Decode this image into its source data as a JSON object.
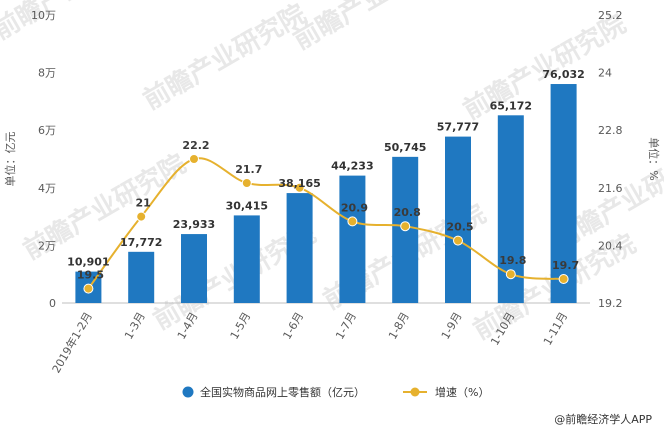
{
  "credit": "@前瞻经济学人APP",
  "watermark_text": "前瞻产业研究院",
  "chart_data": {
    "type": "bar+line",
    "categories": [
      "2019年1-2月",
      "1-3月",
      "1-4月",
      "1-5月",
      "1-6月",
      "1-7月",
      "1-8月",
      "1-9月",
      "1-10月",
      "1-11月"
    ],
    "series": [
      {
        "name": "全国实物商品网上零售额（亿元）",
        "type": "bar",
        "axis": "left",
        "color": "#1f78c1",
        "values": [
          10901,
          17772,
          23933,
          30415,
          38165,
          44233,
          50745,
          57777,
          65172,
          76032
        ],
        "labels": [
          "10,901",
          "17,772",
          "23,933",
          "30,415",
          "38,165",
          "44,233",
          "50,745",
          "57,777",
          "65,172",
          "76,032"
        ]
      },
      {
        "name": "增速（%）",
        "type": "line",
        "axis": "right",
        "color": "#e6b12e",
        "values": [
          19.5,
          21,
          22.2,
          21.7,
          21.6,
          20.9,
          20.8,
          20.5,
          19.8,
          19.7
        ],
        "labels": [
          "19.5",
          "21",
          "22.2",
          "21.7",
          "",
          "20.9",
          "20.8",
          "20.5",
          "19.8",
          "19.7"
        ]
      }
    ],
    "y_left": {
      "label": "单位：亿元",
      "min": 0,
      "max": 100000,
      "ticks": [
        0,
        20000,
        40000,
        60000,
        80000,
        100000
      ],
      "tick_labels": [
        "0",
        "2万",
        "4万",
        "6万",
        "8万",
        "10万"
      ]
    },
    "y_right": {
      "label": "单位：%",
      "min": 19.2,
      "max": 25.2,
      "ticks": [
        19.2,
        20.4,
        21.6,
        22.8,
        24,
        25.2
      ],
      "tick_labels": [
        "19.2",
        "20.4",
        "21.6",
        "22.8",
        "24",
        "25.2"
      ]
    },
    "grid": false,
    "legend_position": "bottom"
  }
}
